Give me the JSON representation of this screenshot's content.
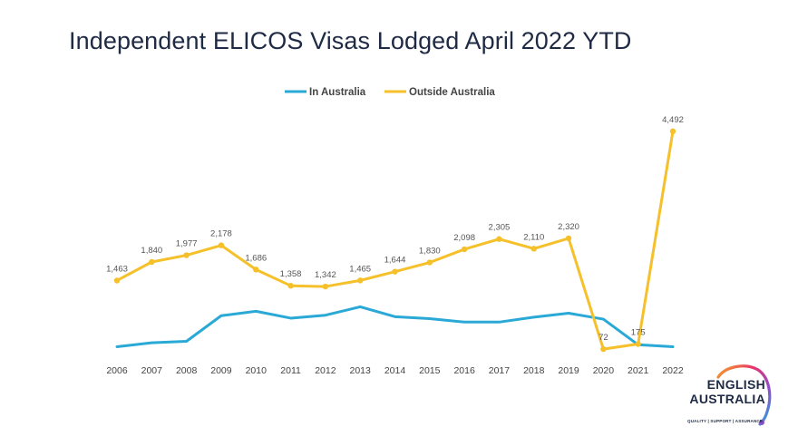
{
  "slide": {
    "title": "Independent ELICOS Visas Lodged April 2022 YTD"
  },
  "logo": {
    "word1": "ENGLISH",
    "word2": "AUSTRALIA",
    "tagline": "QUALITY | SUPPORT | ASSURANCE"
  },
  "colors": {
    "in_australia": "#2aa9d6",
    "outside_australia": "#f5c02a",
    "text": "#1f2a44",
    "label": "#555555"
  },
  "chart_data": {
    "type": "line",
    "title": "Independent ELICOS Visas Lodged April 2022 YTD",
    "x": [
      "2006",
      "2007",
      "2008",
      "2009",
      "2010",
      "2011",
      "2012",
      "2013",
      "2014",
      "2015",
      "2016",
      "2017",
      "2018",
      "2019",
      "2020",
      "2021",
      "2022"
    ],
    "legend_position": "top",
    "grid": false,
    "ylim": [
      0,
      4600
    ],
    "series": [
      {
        "name": "In Australia",
        "values": [
          120,
          200,
          230,
          750,
          840,
          700,
          760,
          930,
          730,
          690,
          620,
          620,
          720,
          800,
          680,
          160,
          120
        ],
        "show_labels": false
      },
      {
        "name": "Outside Australia",
        "values": [
          1463,
          1840,
          1977,
          2178,
          1686,
          1358,
          1342,
          1465,
          1644,
          1830,
          2098,
          2305,
          2110,
          2320,
          72,
          175,
          4492
        ],
        "labels": [
          "1,463",
          "1,840",
          "1,977",
          "2,178",
          "1,686",
          "1,358",
          "1,342",
          "1,465",
          "1,644",
          "1,830",
          "2,098",
          "2,305",
          "2,110",
          "2,320",
          "72",
          "175",
          "4,492"
        ],
        "show_labels": true
      }
    ]
  }
}
